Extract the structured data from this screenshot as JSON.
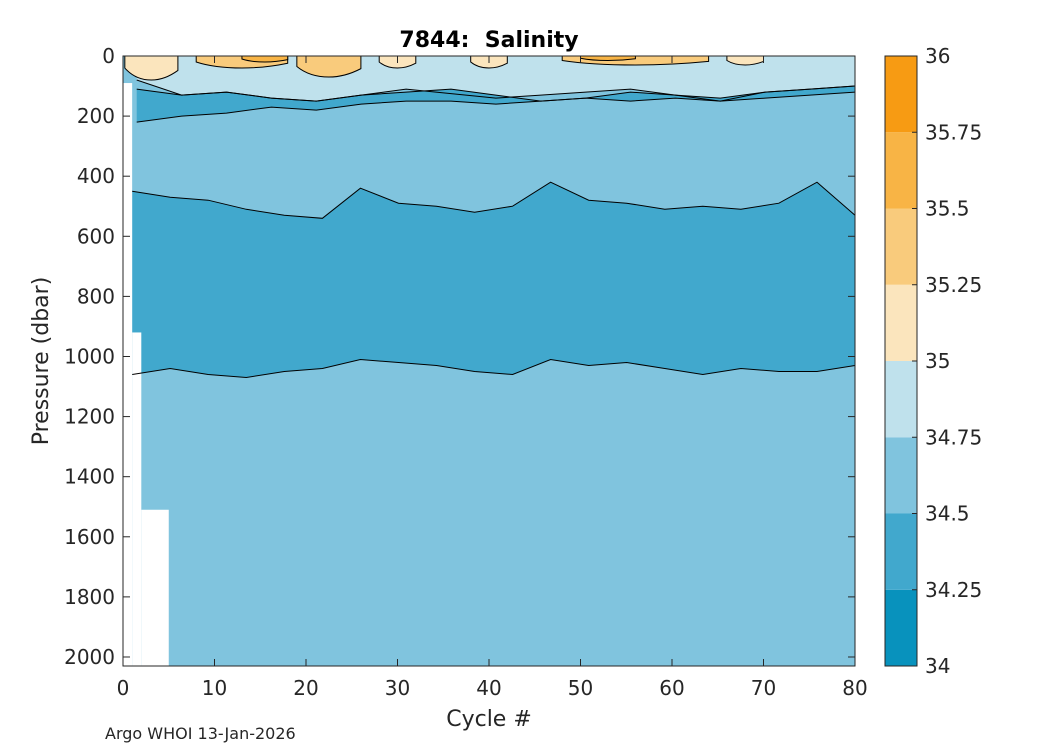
{
  "chart_data": {
    "type": "heatmap",
    "subtype": "filled-contour",
    "title": "7844:  Salinity",
    "xlabel": "Cycle #",
    "ylabel": "Pressure (dbar)",
    "xlim": [
      0,
      80
    ],
    "ylim": [
      2030,
      0
    ],
    "y_reversed": true,
    "xticks": [
      0,
      10,
      20,
      30,
      40,
      50,
      60,
      70,
      80
    ],
    "yticks": [
      0,
      200,
      400,
      600,
      800,
      1000,
      1200,
      1400,
      1600,
      1800,
      2000
    ],
    "colorbar": {
      "range": [
        34,
        36
      ],
      "ticks": [
        34,
        34.25,
        34.5,
        34.75,
        35,
        35.25,
        35.5,
        35.75,
        36
      ],
      "levels": [
        {
          "from": 34.0,
          "to": 34.25,
          "color": "#0892bd"
        },
        {
          "from": 34.25,
          "to": 34.5,
          "color": "#41a8cd"
        },
        {
          "from": 34.5,
          "to": 34.75,
          "color": "#80c4de"
        },
        {
          "from": 34.75,
          "to": 35.0,
          "color": "#bfe1ec"
        },
        {
          "from": 35.0,
          "to": 35.25,
          "color": "#fbe5bd"
        },
        {
          "from": 35.25,
          "to": 35.5,
          "color": "#f9cb7c"
        },
        {
          "from": 35.5,
          "to": 35.75,
          "color": "#f8b445"
        },
        {
          "from": 35.75,
          "to": 36.0,
          "color": "#f79b13"
        }
      ]
    },
    "bands": [
      {
        "name": "surface-fresh-band",
        "salinity_range": "34.75-35.0",
        "cycles": [
          1.5,
          80
        ],
        "pressure_top": 0,
        "pressure_bottom": [
          80,
          130,
          120,
          140,
          150,
          130,
          110,
          125,
          140,
          130,
          120,
          110,
          130,
          150,
          120,
          110,
          100
        ]
      },
      {
        "name": "shallow-core",
        "salinity_range": "34.25-34.5",
        "cycles": [
          1.5,
          80
        ],
        "pressure_top": [
          110,
          130,
          120,
          140,
          150,
          130,
          120,
          110,
          130,
          150,
          140,
          120,
          130,
          140,
          120,
          110,
          100
        ],
        "pressure_bottom": [
          220,
          200,
          190,
          170,
          180,
          160,
          150,
          150,
          160,
          150,
          140,
          150,
          140,
          150,
          140,
          130,
          120
        ]
      },
      {
        "name": "intermediate-core",
        "salinity_range": "34.25-34.5",
        "cycles": [
          1,
          80
        ],
        "pressure_top": [
          450,
          470,
          480,
          510,
          530,
          540,
          440,
          490,
          500,
          520,
          500,
          420,
          480,
          490,
          510,
          500,
          510,
          490,
          420,
          530
        ],
        "pressure_bottom": [
          1060,
          1040,
          1060,
          1070,
          1050,
          1040,
          1010,
          1020,
          1030,
          1050,
          1060,
          1010,
          1030,
          1020,
          1040,
          1060,
          1040,
          1050,
          1050,
          1030
        ]
      }
    ],
    "salty_patches": [
      {
        "cycles": [
          0.2,
          6
        ],
        "pressure": [
          0,
          80
        ],
        "salinity_range": "35.0-35.25"
      },
      {
        "cycles": [
          8,
          18
        ],
        "pressure": [
          0,
          40
        ],
        "salinity_range": "35.25-35.5"
      },
      {
        "cycles": [
          13,
          18
        ],
        "pressure": [
          0,
          20
        ],
        "salinity_range": "35.5-35.75"
      },
      {
        "cycles": [
          19,
          26
        ],
        "pressure": [
          0,
          70
        ],
        "salinity_range": "35.25-35.5"
      },
      {
        "cycles": [
          28,
          32
        ],
        "pressure": [
          0,
          40
        ],
        "salinity_range": "35.0-35.25"
      },
      {
        "cycles": [
          38,
          42
        ],
        "pressure": [
          0,
          40
        ],
        "salinity_range": "35.0-35.25"
      },
      {
        "cycles": [
          48,
          64
        ],
        "pressure": [
          0,
          30
        ],
        "salinity_range": "35.25-35.5"
      },
      {
        "cycles": [
          50,
          56
        ],
        "pressure": [
          0,
          15
        ],
        "salinity_range": "35.5-35.75"
      },
      {
        "cycles": [
          66,
          70
        ],
        "pressure": [
          0,
          30
        ],
        "salinity_range": "35.0-35.25"
      }
    ],
    "missing_data": [
      {
        "cycles": [
          0,
          1
        ],
        "pressure": [
          90,
          2030
        ]
      },
      {
        "cycles": [
          1,
          2
        ],
        "pressure": [
          920,
          2030
        ]
      },
      {
        "cycles": [
          2,
          5
        ],
        "pressure": [
          1510,
          2030
        ]
      }
    ]
  },
  "footer": {
    "credit": "Argo WHOI 13-Jan-2026"
  }
}
